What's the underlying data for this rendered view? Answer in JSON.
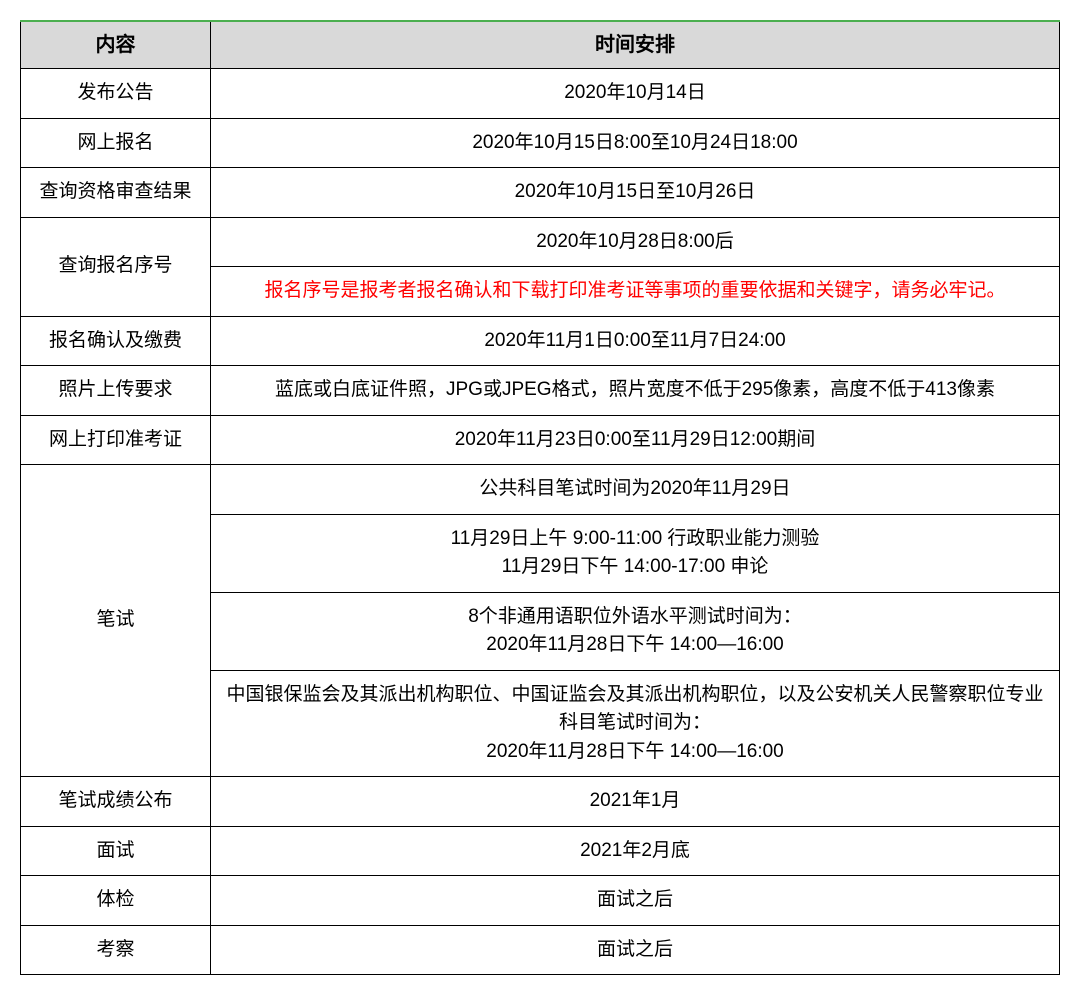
{
  "table": {
    "header": {
      "col1": "内容",
      "col2": "时间安排"
    },
    "rows": {
      "r1": {
        "label": "发布公告",
        "value": "2020年10月14日"
      },
      "r2": {
        "label": "网上报名",
        "value": "2020年10月15日8:00至10月24日18:00"
      },
      "r3": {
        "label": "查询资格审查结果",
        "value": "2020年10月15日至10月26日"
      },
      "r4": {
        "label": "查询报名序号",
        "value1": "2020年10月28日8:00后",
        "value2": "报名序号是报考者报名确认和下载打印准考证等事项的重要依据和关键字，请务必牢记。"
      },
      "r5": {
        "label": "报名确认及缴费",
        "value": "2020年11月1日0:00至11月7日24:00"
      },
      "r6": {
        "label": "照片上传要求",
        "value": "蓝底或白底证件照，JPG或JPEG格式，照片宽度不低于295像素，高度不低于413像素"
      },
      "r7": {
        "label": "网上打印准考证",
        "value": "2020年11月23日0:00至11月29日12:00期间"
      },
      "r8": {
        "label": "笔试",
        "value1": "公共科目笔试时间为2020年11月29日",
        "value2": "11月29日上午  9:00-11:00 行政职业能力测验\n11月29日下午  14:00-17:00   申论",
        "value3": "8个非通用语职位外语水平测试时间为：\n2020年11月28日下午  14:00—16:00",
        "value4": "中国银保监会及其派出机构职位、中国证监会及其派出机构职位，以及公安机关人民警察职位专业科目笔试时间为：\n2020年11月28日下午  14:00—16:00"
      },
      "r9": {
        "label": "笔试成绩公布",
        "value": "2021年1月"
      },
      "r10": {
        "label": "面试",
        "value": "2021年2月底"
      },
      "r11": {
        "label": "体检",
        "value": "面试之后"
      },
      "r12": {
        "label": "考察",
        "value": "面试之后"
      }
    }
  },
  "style": {
    "header_bg": "#d9d9d9",
    "border_color": "#000000",
    "top_border_color": "#4caf50",
    "note_color": "#ff0000",
    "font_size_body": 19,
    "font_size_header": 20,
    "col_label_width": 190
  }
}
